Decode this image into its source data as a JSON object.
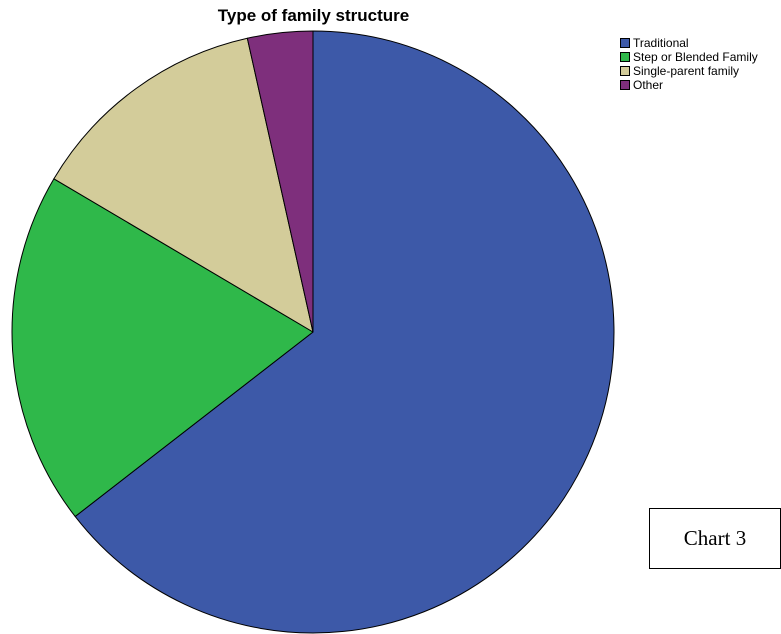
{
  "chart_data": {
    "type": "pie",
    "title": "Type of family structure",
    "categories": [
      "Traditional",
      "Step or Blended Family",
      "Single-parent family",
      "Other"
    ],
    "values": [
      64.5,
      19.0,
      13.0,
      3.5
    ],
    "colors": [
      "#3d59a8",
      "#2fb84a",
      "#d3cc9a",
      "#7e2f7c"
    ],
    "legend_position": "top-right"
  },
  "caption": "Chart 3"
}
